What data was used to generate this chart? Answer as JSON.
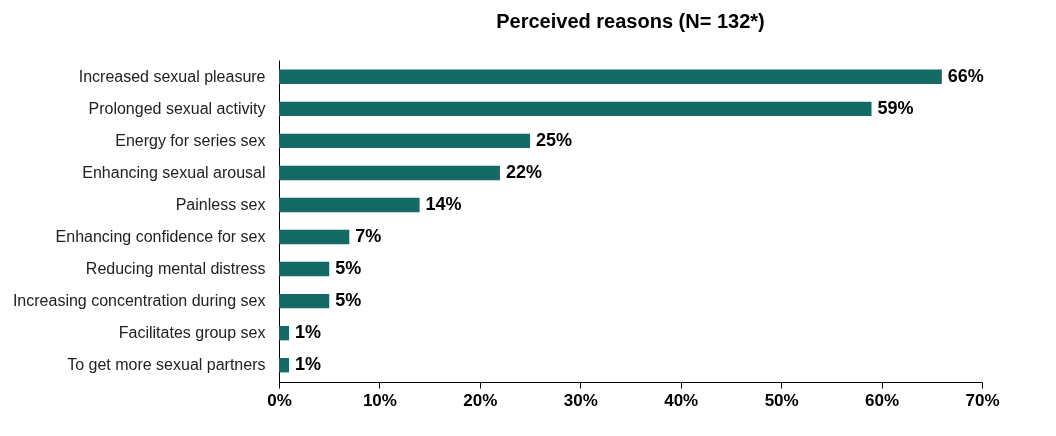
{
  "chart_data": {
    "type": "bar",
    "orientation": "horizontal",
    "title": "Perceived reasons (N= 132*)",
    "categories": [
      "Increased sexual pleasure",
      "Prolonged sexual activity",
      "Energy for series sex",
      "Enhancing sexual arousal",
      "Painless sex",
      "Enhancing confidence for sex",
      "Reducing mental distress",
      "Increasing concentration during sex",
      "Facilitates group sex",
      "To get more sexual partners"
    ],
    "values": [
      66,
      59,
      25,
      22,
      14,
      7,
      5,
      5,
      1,
      1
    ],
    "value_labels": [
      "66%",
      "59%",
      "25%",
      "22%",
      "14%",
      "7%",
      "5%",
      "5%",
      "1%",
      "1%"
    ],
    "color": "#146b66",
    "xlim": [
      0,
      70
    ],
    "xticks": [
      {
        "value": 0,
        "label": "0%"
      },
      {
        "value": 10,
        "label": "10%"
      },
      {
        "value": 20,
        "label": "20%"
      },
      {
        "value": 30,
        "label": "30%"
      },
      {
        "value": 40,
        "label": "40%"
      },
      {
        "value": 50,
        "label": "50%"
      },
      {
        "value": 60,
        "label": "60%"
      },
      {
        "value": 70,
        "label": "70%"
      }
    ],
    "grid": false
  }
}
